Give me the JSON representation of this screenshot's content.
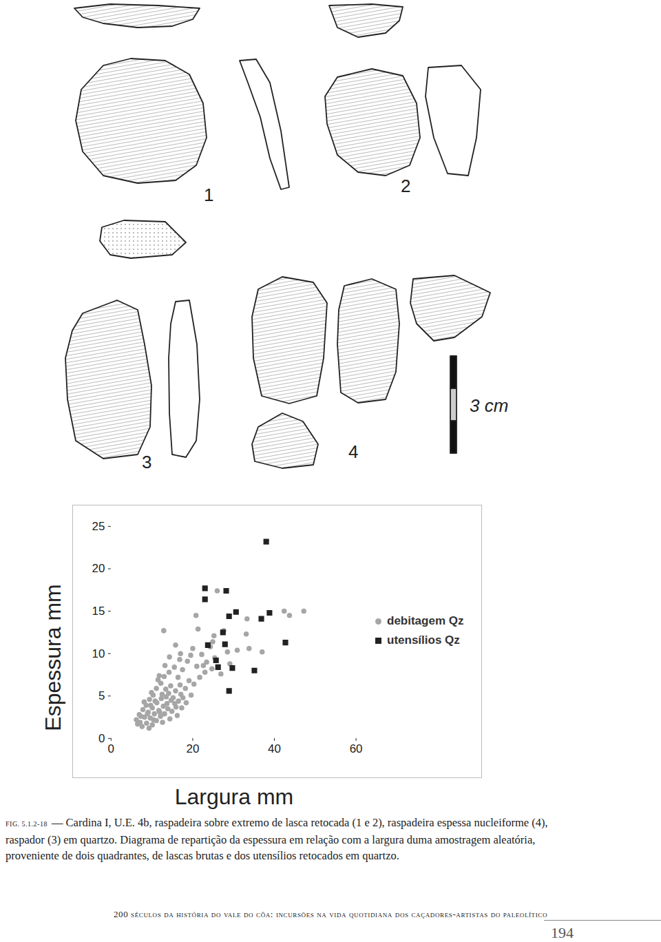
{
  "figures": {
    "labels": [
      "1",
      "2",
      "3",
      "4"
    ],
    "scale_label": "3 cm"
  },
  "chart_data": {
    "type": "scatter",
    "x_label": "Largura mm",
    "y_label": "Espessura mm",
    "xlim": [
      0,
      60
    ],
    "xticks": [
      0,
      20,
      40,
      60
    ],
    "ylim": [
      0,
      25
    ],
    "yticks": [
      0,
      5,
      10,
      15,
      20,
      25
    ],
    "grid": false,
    "legend": "right",
    "series": [
      {
        "name": "debitagem Qz",
        "color": "#a6a6a6",
        "marker": "circle",
        "x": [
          26,
          20.8,
          42.4,
          43.7,
          47.2,
          33.3,
          21.3,
          12.9,
          33.1,
          25.2,
          24.9,
          30.9,
          37,
          33.8,
          15.8,
          17,
          19.5,
          23.4,
          24.7,
          26.9,
          22.2,
          18.7,
          15.5,
          17.5,
          20.3,
          21.7,
          14.3,
          13.2,
          11.8,
          16.4,
          19.1,
          18.2,
          17.1,
          15.8,
          14.6,
          13.4,
          12.2,
          11.1,
          10.3,
          9.4,
          8.6,
          7.8,
          6.9,
          6.2,
          7.1,
          8.2,
          9.1,
          10.1,
          11.2,
          12.3,
          13.5,
          14.7,
          15.6,
          16.5,
          17.6,
          12.8,
          11.7,
          10.6,
          9.6,
          8.7,
          7.6,
          13.9,
          14.9,
          15.9,
          13.1,
          12.1,
          11.1,
          10.1,
          9.3,
          16.2,
          14.4,
          12.6,
          8.1,
          9.9,
          11.5,
          13,
          16.9,
          18.4,
          14.1,
          12.5,
          10.8,
          9.7,
          8.9,
          7.3,
          6.5,
          10.4,
          11.9,
          13.7,
          15.2,
          17.3,
          19.6,
          21,
          23,
          25.4,
          28.5,
          24.3,
          27.6,
          29.1,
          22.6,
          20,
          16.8,
          14.2
        ],
        "y": [
          17.4,
          14.5,
          15,
          14.5,
          15,
          14.1,
          12.9,
          12.7,
          12.3,
          12.1,
          11.4,
          10.4,
          10.2,
          10.6,
          11,
          10,
          9.8,
          9,
          8.2,
          7.6,
          9.9,
          9.1,
          8.4,
          8.1,
          6.4,
          7.2,
          9.6,
          8.6,
          7.4,
          7.2,
          6.8,
          5.9,
          5.2,
          5.6,
          6.2,
          5.8,
          6.5,
          5.9,
          5.1,
          4.6,
          3.9,
          3.4,
          2.8,
          2.2,
          1.9,
          2.5,
          3.1,
          3.6,
          4.2,
          4.7,
          4.9,
          4.5,
          4.1,
          4.4,
          4.8,
          3.8,
          3.3,
          2.9,
          2.4,
          1.8,
          1.4,
          3.5,
          3.2,
          3.7,
          2.9,
          2.6,
          2.1,
          1.6,
          1.2,
          2.7,
          2.3,
          1.9,
          4.3,
          5.4,
          6.9,
          7.3,
          6.3,
          4.2,
          5.3,
          5.2,
          4.4,
          3.9,
          2.9,
          2.6,
          1.7,
          2.2,
          3.1,
          4.1,
          4.8,
          3.6,
          5.1,
          8.5,
          7.8,
          9.5,
          10.2,
          10.8,
          12.7,
          8.8,
          8.6,
          10.6,
          9.3,
          7.8
        ]
      },
      {
        "name": "utensílios Qz",
        "color": "#222222",
        "marker": "square",
        "x": [
          38,
          23,
          28.2,
          23,
          30.6,
          28.9,
          38.8,
          36.8,
          27.4,
          23.7,
          42.7,
          27.9,
          25.7,
          26.2,
          29.7,
          35.1,
          28.9
        ],
        "y": [
          23.2,
          17.7,
          17.4,
          16.4,
          14.9,
          14.4,
          14.8,
          14.1,
          12.5,
          11,
          11.3,
          11.1,
          9.2,
          8.4,
          8.3,
          8,
          5.6
        ]
      }
    ]
  },
  "caption": {
    "fig_label": "FIG. 5.1.2-18",
    "text": "— Cardina I, U.E. 4b, raspadeira sobre extremo de lasca retocada (1 e 2), raspadeira espessa nucleiforme (4), raspador (3) em quartzo. Diagrama de repartição da espessura em relação com a largura duma amostragem aleatória, proveniente de dois quadrantes, de lascas brutas e dos utensílios retocados em quartzo."
  },
  "footer": "200 séculos da história do vale do côa: incursões na vida quotidiana dos caçadores-artistas do paleolítico",
  "page_number": "194"
}
